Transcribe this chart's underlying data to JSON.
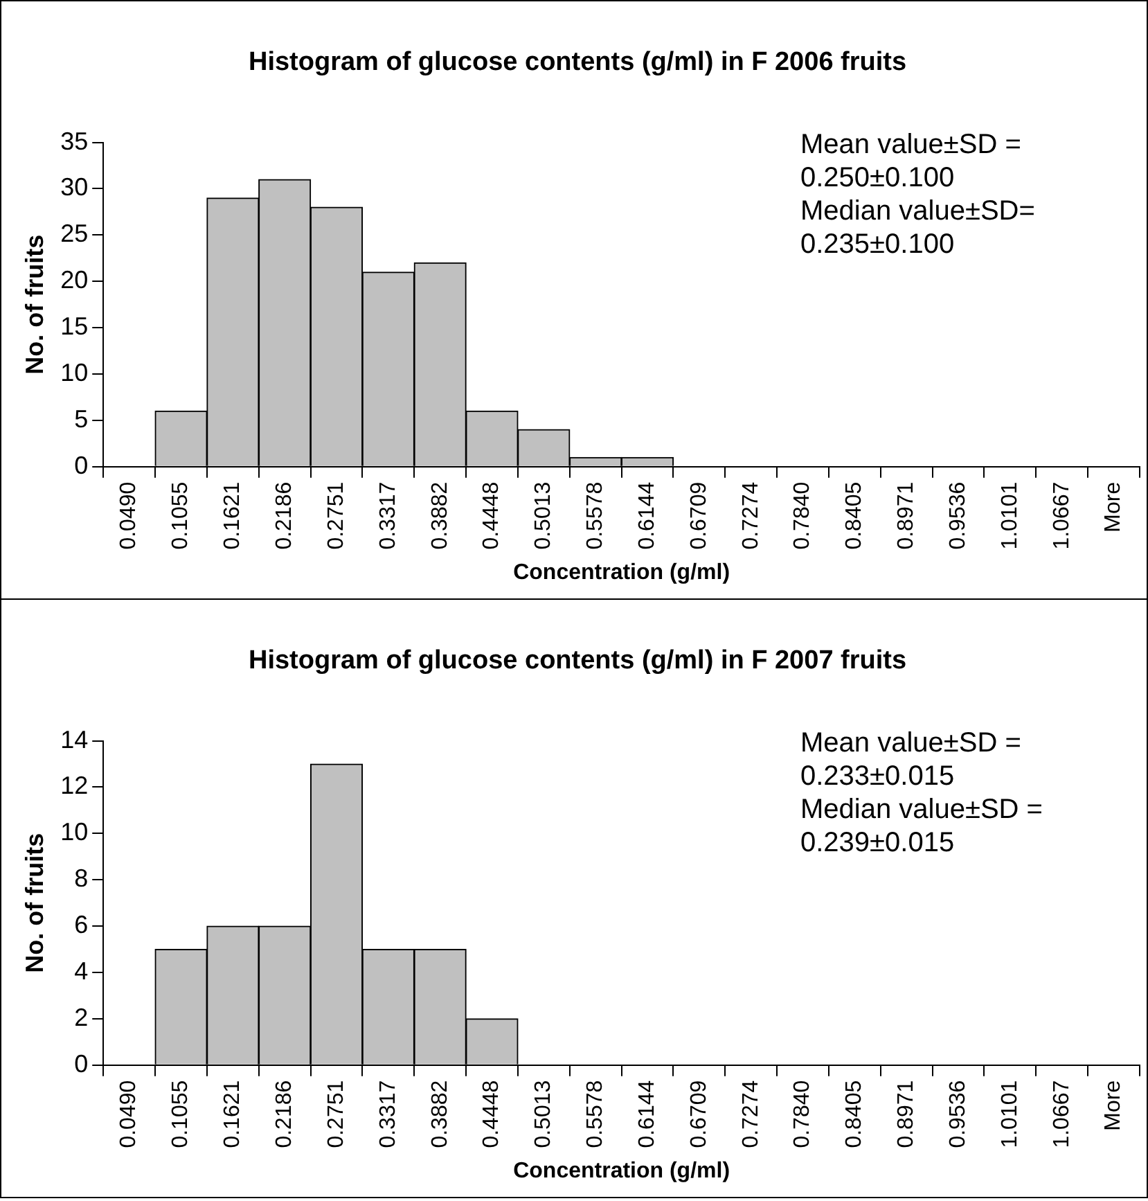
{
  "chart_data": [
    {
      "type": "bar",
      "title": "Histogram of glucose contents (g/ml) in F 2006 fruits",
      "xlabel": "Concentration (g/ml)",
      "ylabel": "No. of fruits",
      "categories": [
        "0.0490",
        "0.1055",
        "0.1621",
        "0.2186",
        "0.2751",
        "0.3317",
        "0.3882",
        "0.4448",
        "0.5013",
        "0.5578",
        "0.6144",
        "0.6709",
        "0.7274",
        "0.7840",
        "0.8405",
        "0.8971",
        "0.9536",
        "1.0101",
        "1.0667",
        "More"
      ],
      "values": [
        0,
        6,
        29,
        31,
        28,
        21,
        22,
        6,
        4,
        1,
        1,
        0,
        0,
        0,
        0,
        0,
        0,
        0,
        0,
        0
      ],
      "color": "#c0c0c0",
      "ylim": [
        0,
        35
      ],
      "yticks": [
        0,
        5,
        10,
        15,
        20,
        25,
        30,
        35
      ],
      "grid": false,
      "legend": false,
      "annotations": [
        "Mean value±SD = 0.250±0.100",
        "Median value±SD= 0.235±0.100"
      ]
    },
    {
      "type": "bar",
      "title": "Histogram of glucose contents (g/ml) in F 2007 fruits",
      "xlabel": "Concentration (g/ml)",
      "ylabel": "No. of fruits",
      "categories": [
        "0.0490",
        "0.1055",
        "0.1621",
        "0.2186",
        "0.2751",
        "0.3317",
        "0.3882",
        "0.4448",
        "0.5013",
        "0.5578",
        "0.6144",
        "0.6709",
        "0.7274",
        "0.7840",
        "0.8405",
        "0.8971",
        "0.9536",
        "1.0101",
        "1.0667",
        "More"
      ],
      "values": [
        0,
        5,
        6,
        6,
        13,
        5,
        5,
        2,
        0,
        0,
        0,
        0,
        0,
        0,
        0,
        0,
        0,
        0,
        0,
        0
      ],
      "color": "#c0c0c0",
      "ylim": [
        0,
        14
      ],
      "yticks": [
        0,
        2,
        4,
        6,
        8,
        10,
        12,
        14
      ],
      "grid": false,
      "legend": false,
      "annotations": [
        "Mean value±SD = 0.233±0.015",
        "Median value±SD = 0.239±0.015"
      ]
    }
  ]
}
